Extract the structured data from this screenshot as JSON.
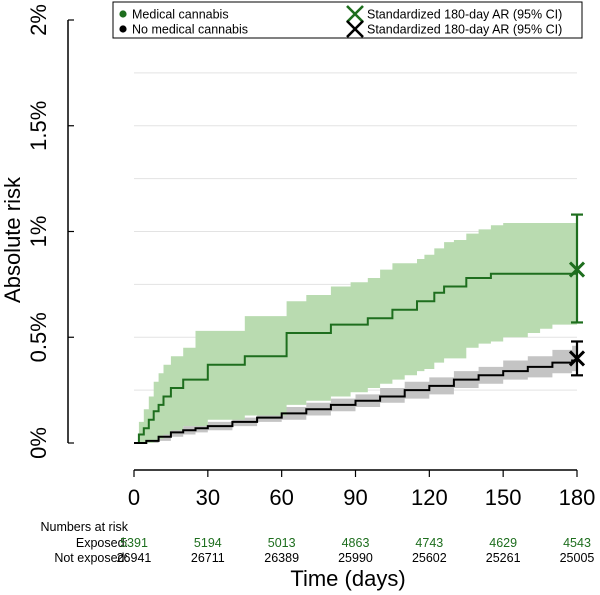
{
  "chart_data": {
    "type": "line",
    "ylabel": "Absolute risk",
    "xlabel": "Time (days)",
    "xlim": [
      0,
      180
    ],
    "ylim": [
      0,
      2
    ],
    "x_ticks": [
      0,
      30,
      60,
      90,
      120,
      150,
      180
    ],
    "x_tick_labels": [
      "0",
      "30",
      "60",
      "90",
      "120",
      "150",
      "180"
    ],
    "y_ticks": [
      0,
      0.5,
      1,
      1.5,
      2
    ],
    "y_tick_labels": [
      "0%",
      "0.5%",
      "1%",
      "1.5%",
      "2%"
    ],
    "colors": {
      "exposed": "#1e6e1e",
      "exposed_band": "#b9dbb0",
      "unexposed": "#000000",
      "unexposed_band": "#c4c4c4",
      "grid": "#e3e3e3"
    },
    "legend": {
      "items": [
        {
          "label": "Medical cannabis",
          "marker": "dot",
          "color": "#1e6e1e"
        },
        {
          "label": "No medical cannabis",
          "marker": "dot",
          "color": "#000000"
        },
        {
          "label": "Standardized 180-day AR (95% CI)",
          "marker": "x",
          "color": "#1e6e1e"
        },
        {
          "label": "Standardized 180-day AR (95% CI)",
          "marker": "x",
          "color": "#000000"
        }
      ]
    },
    "series": [
      {
        "name": "Medical cannabis",
        "color": "#1e6e1e",
        "x": [
          0,
          2,
          4,
          6,
          8,
          10,
          12,
          15,
          20,
          25,
          30,
          40,
          45,
          55,
          62,
          70,
          80,
          88,
          95,
          100,
          105,
          110,
          115,
          118,
          122,
          126,
          130,
          135,
          140,
          145,
          150,
          160,
          165,
          170,
          178
        ],
        "y": [
          0,
          0.04,
          0.07,
          0.11,
          0.15,
          0.18,
          0.22,
          0.26,
          0.3,
          0.3,
          0.37,
          0.37,
          0.41,
          0.41,
          0.52,
          0.52,
          0.56,
          0.56,
          0.59,
          0.59,
          0.63,
          0.63,
          0.67,
          0.67,
          0.71,
          0.74,
          0.74,
          0.78,
          0.78,
          0.8,
          0.8,
          0.8,
          0.8,
          0.8,
          0.8
        ],
        "lower": [
          0,
          0,
          0,
          0,
          0.01,
          0.02,
          0.04,
          0.06,
          0.08,
          0.08,
          0.11,
          0.11,
          0.13,
          0.13,
          0.18,
          0.2,
          0.22,
          0.24,
          0.26,
          0.28,
          0.3,
          0.32,
          0.34,
          0.35,
          0.38,
          0.4,
          0.4,
          0.45,
          0.47,
          0.48,
          0.5,
          0.52,
          0.54,
          0.56,
          0.56
        ],
        "upper": [
          0,
          0.1,
          0.16,
          0.22,
          0.29,
          0.33,
          0.37,
          0.41,
          0.45,
          0.53,
          0.53,
          0.53,
          0.6,
          0.6,
          0.67,
          0.7,
          0.74,
          0.76,
          0.78,
          0.82,
          0.85,
          0.85,
          0.87,
          0.89,
          0.92,
          0.95,
          0.96,
          0.99,
          1.01,
          1.03,
          1.04,
          1.04,
          1.04,
          1.04,
          1.04
        ]
      },
      {
        "name": "No medical cannabis",
        "color": "#000000",
        "x": [
          0,
          5,
          10,
          15,
          20,
          25,
          30,
          40,
          50,
          60,
          70,
          80,
          90,
          100,
          110,
          120,
          130,
          140,
          150,
          160,
          170,
          178
        ],
        "y": [
          0,
          0.01,
          0.03,
          0.05,
          0.06,
          0.07,
          0.08,
          0.1,
          0.12,
          0.14,
          0.16,
          0.18,
          0.2,
          0.22,
          0.25,
          0.27,
          0.3,
          0.32,
          0.34,
          0.36,
          0.38,
          0.39
        ],
        "lower": [
          0,
          0,
          0.01,
          0.03,
          0.04,
          0.05,
          0.06,
          0.08,
          0.1,
          0.11,
          0.13,
          0.15,
          0.17,
          0.19,
          0.21,
          0.23,
          0.26,
          0.28,
          0.3,
          0.31,
          0.33,
          0.34
        ],
        "upper": [
          0,
          0.02,
          0.05,
          0.07,
          0.08,
          0.09,
          0.1,
          0.12,
          0.14,
          0.17,
          0.19,
          0.21,
          0.23,
          0.26,
          0.29,
          0.31,
          0.34,
          0.36,
          0.39,
          0.41,
          0.44,
          0.46
        ]
      }
    ],
    "standardized_ar": [
      {
        "name": "Medical cannabis",
        "x": 180,
        "value": 0.82,
        "lower": 0.57,
        "upper": 1.08,
        "color": "#1e6e1e"
      },
      {
        "name": "No medical cannabis",
        "x": 180,
        "value": 0.4,
        "lower": 0.32,
        "upper": 0.48,
        "color": "#000000"
      }
    ],
    "numbers_at_risk": {
      "heading": "Numbers at risk",
      "rows": [
        {
          "label": "Exposed:",
          "color": "#1e6e1e",
          "values": [
            "5391",
            "5194",
            "5013",
            "4863",
            "4743",
            "4629",
            "4543"
          ]
        },
        {
          "label": "Not exposed:",
          "color": "#000000",
          "values": [
            "26941",
            "26711",
            "26389",
            "25990",
            "25602",
            "25261",
            "25005"
          ]
        }
      ]
    }
  }
}
